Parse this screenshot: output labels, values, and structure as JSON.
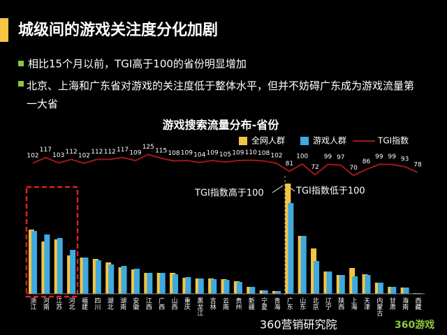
{
  "header": {
    "title": "城级间的游戏关注度分化加剧"
  },
  "bullets": [
    "相比15个月以前，TGI高于100的省份明显增加",
    "北京、上海和广东省对游戏的关注度低于整体水平，但并不妨碍广东成为游戏流量第一大省"
  ],
  "chart_data": {
    "type": "bar",
    "title": "游戏搜索流量分布-省份",
    "categories": [
      "浙江",
      "河南",
      "江苏",
      "河北",
      "福建",
      "四川",
      "湖北",
      "湖南",
      "安徽",
      "江西",
      "广西",
      "山西",
      "重庆",
      "黑龙江",
      "吉林",
      "云南",
      "贵州",
      "新疆",
      "宁夏",
      "青海",
      "广东",
      "山东",
      "北京",
      "辽宁",
      "陕西",
      "上海",
      "天津",
      "内蒙古",
      "甘肃",
      "海南",
      "西藏"
    ],
    "series": [
      {
        "name": "全网人群",
        "color": "#f5c542",
        "values": [
          92,
          75,
          78,
          55,
          52,
          50,
          45,
          38,
          35,
          30,
          30,
          30,
          23,
          22,
          22,
          21,
          18,
          10,
          5,
          4,
          158,
          83,
          65,
          32,
          27,
          37,
          28,
          16,
          10,
          9,
          1
        ]
      },
      {
        "name": "游戏人群",
        "color": "#3fa9e0",
        "values": [
          90,
          85,
          80,
          63,
          52,
          48,
          42,
          40,
          36,
          30,
          30,
          28,
          24,
          22,
          21,
          20,
          17,
          10,
          5,
          4,
          130,
          83,
          47,
          32,
          27,
          25,
          27,
          16,
          10,
          9,
          1
        ]
      },
      {
        "name": "TGI指数",
        "type": "line",
        "color": "#a01818",
        "values": [
          102,
          117,
          103,
          112,
          102,
          112,
          112,
          117,
          109,
          125,
          115,
          108,
          109,
          104,
          109,
          105,
          109,
          110,
          108,
          102,
          81,
          100,
          72,
          99,
          97,
          70,
          86,
          99,
          99,
          93,
          78
        ]
      }
    ],
    "annotations": [
      "TGI指数高于100",
      "TGI指数低于100"
    ]
  },
  "footer": {
    "brand": "360营销研究院",
    "logo": "360游戏"
  }
}
